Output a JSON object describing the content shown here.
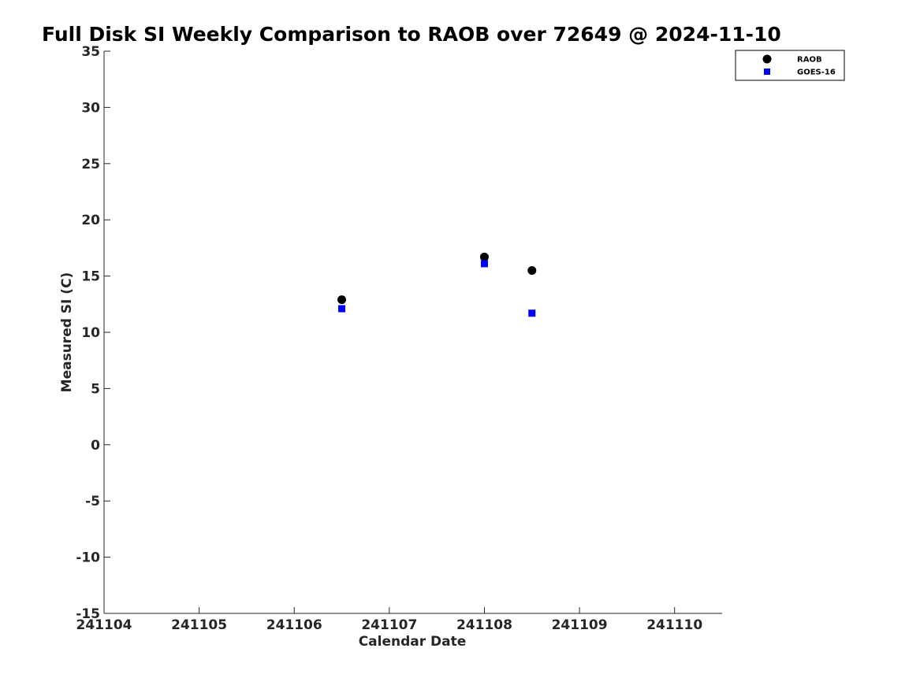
{
  "chart_data": {
    "type": "scatter",
    "title": "Full Disk SI Weekly Comparison to RAOB over 72649 @ 2024-11-10",
    "xlabel": "Calendar Date",
    "ylabel": "Measured SI (C)",
    "xlim": [
      "2024-11-04",
      "2024-11-10 12:00"
    ],
    "ylim": [
      -15,
      35
    ],
    "x_ticks": [
      "241104",
      "241105",
      "241106",
      "241107",
      "241108",
      "241109",
      "241110"
    ],
    "y_ticks": [
      "35",
      "30",
      "25",
      "20",
      "15",
      "10",
      "5",
      "0",
      "-5",
      "-10",
      "-15"
    ],
    "grid": false,
    "legend_position": "top-right",
    "series": [
      {
        "name": "RAOB",
        "marker": "circle",
        "color": "#000000",
        "points": [
          {
            "x": "2024-11-06 12:00",
            "y": 12.9
          },
          {
            "x": "2024-11-08 00:00",
            "y": 16.7
          },
          {
            "x": "2024-11-08 12:00",
            "y": 15.5
          }
        ]
      },
      {
        "name": "GOES-16",
        "marker": "square",
        "color": "#0000ff",
        "points": [
          {
            "x": "2024-11-06 12:00",
            "y": 12.1
          },
          {
            "x": "2024-11-08 00:00",
            "y": 16.1
          },
          {
            "x": "2024-11-08 12:00",
            "y": 11.7
          }
        ]
      }
    ]
  }
}
